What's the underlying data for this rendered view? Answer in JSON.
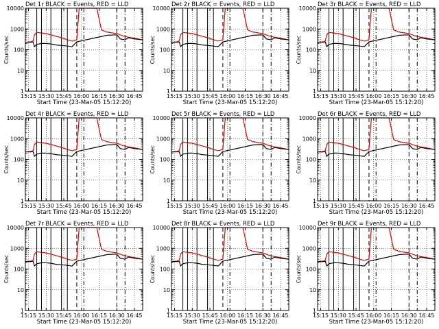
{
  "figure": {
    "xlabel": "Start Time (23-Mar-05 15:12:20)",
    "ylabel": "Counts/sec"
  },
  "chart_data": {
    "type": "line",
    "y_scale": "log",
    "ylim": [
      1,
      10000
    ],
    "y_ticks": [
      1,
      10,
      100,
      1000,
      10000
    ],
    "y_tick_labels": [
      "1",
      "10",
      "100",
      "1000",
      "10000"
    ],
    "x_tick_labels": [
      "15:15",
      "15:30",
      "15:45",
      "16:00",
      "16:15",
      "16:30",
      "16:45"
    ],
    "xlim": [
      "15:12:20",
      "16:52:00"
    ],
    "grid": true,
    "colors": {
      "events": "#000000",
      "lld": "#e00000",
      "frame": "#000000"
    },
    "solid_vlines": [
      "15:22",
      "15:26",
      "15:34",
      "15:43",
      "15:48"
    ],
    "dashed_vlines": [
      "15:56",
      "16:30"
    ],
    "dashdot_vlines": [
      "16:02",
      "16:37"
    ],
    "panels": [
      {
        "title": "Det 1r BLACK = Events, RED = LLD"
      },
      {
        "title": "Det 2r BLACK = Events, RED = LLD"
      },
      {
        "title": "Det 3r BLACK = Events, RED = LLD"
      },
      {
        "title": "Det 4r BLACK = Events, RED = LLD"
      },
      {
        "title": "Det 5r BLACK = Events, RED = LLD"
      },
      {
        "title": "Det 6r BLACK = Events, RED = LLD"
      },
      {
        "title": "Det 7r BLACK = Events, RED = LLD"
      },
      {
        "title": "Det 8r BLACK = Events, RED = LLD"
      },
      {
        "title": "Det 9r BLACK = Events, RED = LLD"
      }
    ],
    "series": [
      {
        "name": "LLD",
        "color": "#e00000",
        "points": [
          [
            "15:12:20",
            230
          ],
          [
            "15:17",
            240
          ],
          [
            "15:19",
            270
          ],
          [
            "15:20",
            520
          ],
          [
            "15:22",
            680
          ],
          [
            "15:26",
            640
          ],
          [
            "15:30",
            600
          ],
          [
            "15:34",
            520
          ],
          [
            "15:38",
            450
          ],
          [
            "15:43",
            380
          ],
          [
            "15:48",
            300
          ],
          [
            "15:52",
            260
          ],
          [
            "15:56",
            300
          ],
          [
            "15:58",
            10000
          ],
          [
            "16:13",
            10000
          ],
          [
            "16:15",
            3000
          ],
          [
            "16:17",
            900
          ],
          [
            "16:22",
            700
          ],
          [
            "16:30",
            600
          ],
          [
            "16:35",
            470
          ],
          [
            "16:40",
            400
          ],
          [
            "16:45",
            360
          ],
          [
            "16:52",
            300
          ]
        ]
      },
      {
        "name": "Events",
        "color": "#000000",
        "points": [
          [
            "15:12:20",
            230
          ],
          [
            "15:17",
            230
          ],
          [
            "15:19",
            235
          ],
          [
            "15:20",
            140
          ],
          [
            "15:22",
            180
          ],
          [
            "15:26",
            200
          ],
          [
            "15:30",
            200
          ],
          [
            "15:34",
            190
          ],
          [
            "15:38",
            170
          ],
          [
            "15:43",
            160
          ],
          [
            "15:48",
            150
          ],
          [
            "15:52",
            140
          ],
          [
            "15:56",
            240
          ],
          [
            "16:22",
            500
          ],
          [
            "16:30",
            520
          ],
          [
            "16:33",
            330
          ],
          [
            "16:37",
            300
          ],
          [
            "16:40",
            380
          ],
          [
            "16:45",
            330
          ],
          [
            "16:52",
            300
          ]
        ]
      }
    ]
  }
}
